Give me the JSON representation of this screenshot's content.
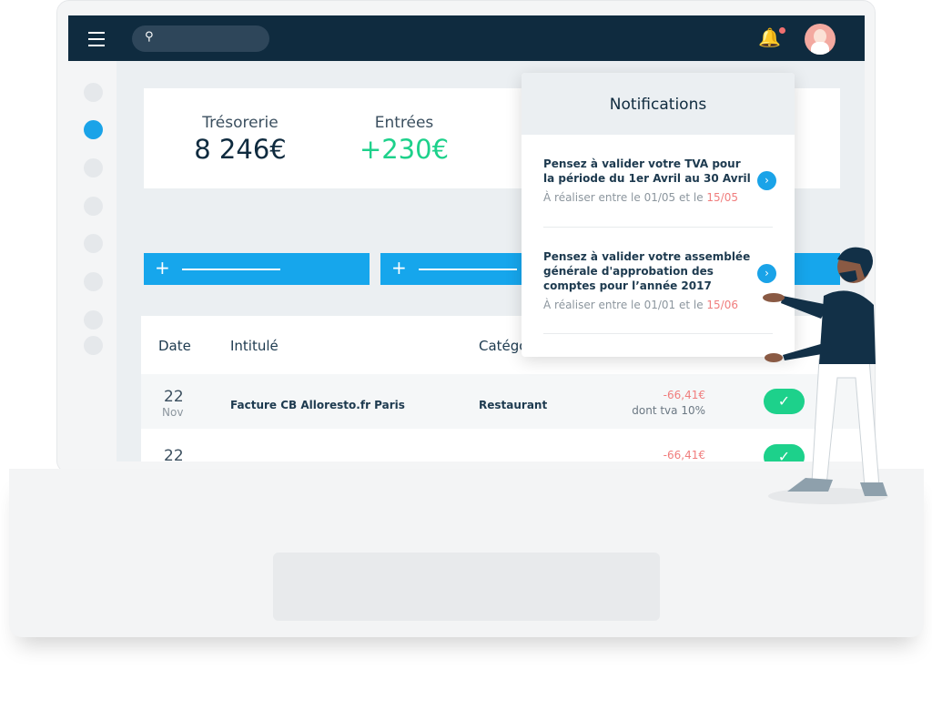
{
  "header": {
    "search_icon": "search-icon",
    "bell_icon": "bell-icon",
    "has_unread": true
  },
  "stats": [
    {
      "label": "Trésorerie",
      "value": "8 246€"
    },
    {
      "label": "Entrées",
      "value": "+230€"
    }
  ],
  "buttons": [
    {
      "icon": "+"
    },
    {
      "icon": "+"
    }
  ],
  "table": {
    "columns": [
      "Date",
      "Intitulé",
      "Catégo"
    ],
    "rows": [
      {
        "day": "22",
        "month": "Nov",
        "label": "Facture CB Alloresto.fr Paris",
        "category": "Restaurant",
        "amount": "-66,41€",
        "vat": "dont tva 10%",
        "validated": true
      },
      {
        "day": "22",
        "month": "",
        "label": "",
        "category": "",
        "amount": "-66,41€",
        "vat": "",
        "validated": true
      }
    ]
  },
  "notifications": {
    "title": "Notifications",
    "items": [
      {
        "text": "Pensez à valider votre TVA pour la période du 1er Avril au 30 Avril",
        "due_prefix": "À réaliser entre le 01/05 et le ",
        "due_date": "15/05"
      },
      {
        "text": "Pensez à valider votre assemblée générale d'approbation des comptes pour l’année 2017",
        "due_prefix": "À réaliser entre le 01/01 et le ",
        "due_date": "15/06"
      }
    ]
  },
  "colors": {
    "accent": "#16a6ec",
    "positive": "#1dd18b",
    "negative": "#f07d7d",
    "header": "#0f2b3f"
  }
}
